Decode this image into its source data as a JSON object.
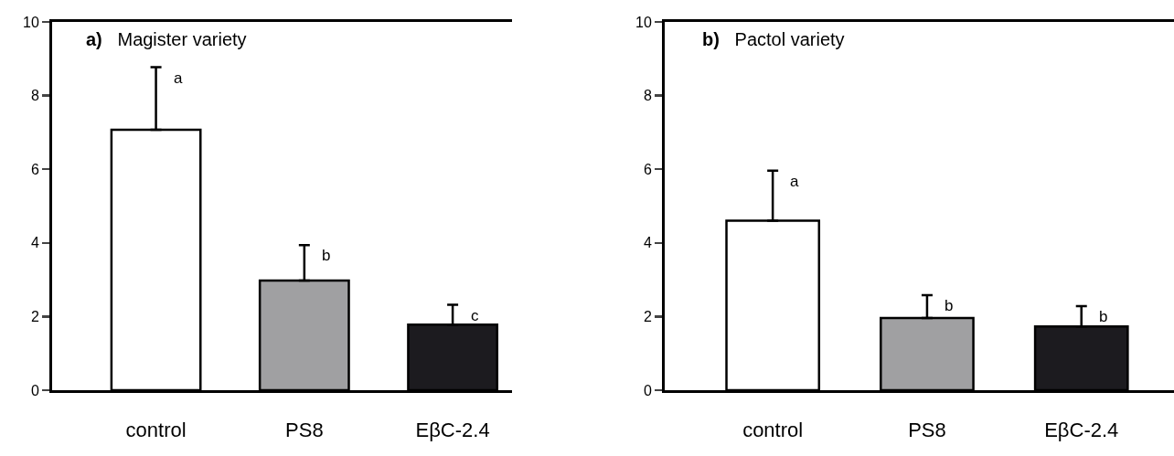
{
  "chart_data": [
    {
      "type": "bar",
      "title": "a) Magister variety",
      "categories": [
        "control",
        "PS8",
        "EβC-2.4"
      ],
      "values": [
        7.07,
        2.98,
        1.78
      ],
      "colors": [
        "#ffffff",
        "#a0a0a2",
        "#1c1b1f"
      ],
      "errors": [
        [
          7.07,
          8.77
        ],
        [
          2.98,
          3.94
        ],
        [
          1.78,
          2.32
        ]
      ],
      "ylim": [
        0,
        10
      ],
      "yticks": [
        0,
        2,
        4,
        6,
        8,
        10
      ],
      "grid": false,
      "annotations": [
        "a",
        "b",
        "c"
      ]
    },
    {
      "type": "bar",
      "title": "b) Pactol variety",
      "categories": [
        "control",
        "PS8",
        "EβC-2.4"
      ],
      "values": [
        4.6,
        1.96,
        1.73
      ],
      "colors": [
        "#ffffff",
        "#a0a0a2",
        "#1c1b1f"
      ],
      "errors": [
        [
          4.6,
          5.96
        ],
        [
          1.96,
          2.58
        ],
        [
          1.73,
          2.28
        ]
      ],
      "ylim": [
        0,
        10
      ],
      "yticks": [
        0,
        2,
        4,
        6,
        8,
        10
      ],
      "grid": false,
      "annotations": [
        "a",
        "b",
        "b"
      ]
    }
  ]
}
